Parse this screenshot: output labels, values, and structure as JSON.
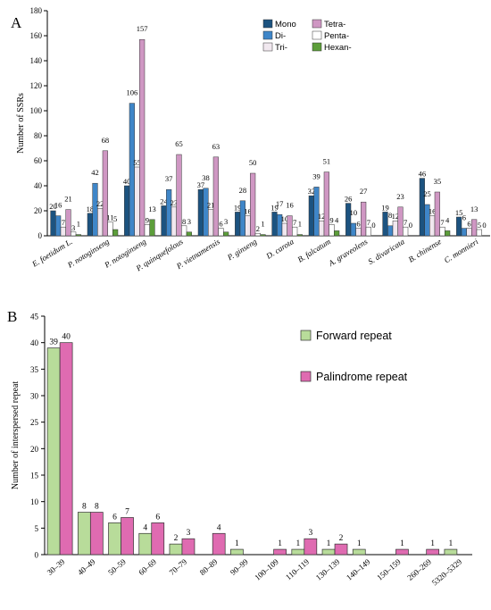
{
  "chart_data": [
    {
      "panel": "A",
      "type": "bar",
      "ylabel": "Number of SSRs",
      "ylim": [
        0,
        180
      ],
      "yticks": [
        0,
        20,
        40,
        60,
        80,
        100,
        120,
        140,
        160,
        180
      ],
      "grid": false,
      "legend_position": "top-right",
      "categories": [
        "E. foetidum L.",
        "P. notoginseng",
        "P. notoginseng",
        "P. quinquefolous",
        "P. vietnamensis",
        "P. ginseng",
        "D. carota",
        "B. falcatum",
        "A. graveolens",
        "S. divaricata",
        "B. chinense",
        "C. monnieri"
      ],
      "series": [
        {
          "name": "Mono",
          "color": "#1c5380",
          "values": [
            20,
            18,
            40,
            24,
            37,
            19,
            19,
            32,
            26,
            19,
            46,
            15
          ]
        },
        {
          "name": "Di-",
          "color": "#3f86c8",
          "values": [
            16,
            42,
            106,
            37,
            38,
            28,
            17,
            39,
            10,
            8,
            25,
            6
          ]
        },
        {
          "name": "Tri-",
          "color": "#f1e8ef",
          "values": [
            7,
            22,
            55,
            23,
            21,
            16,
            10,
            12,
            6,
            12,
            16,
            6
          ]
        },
        {
          "name": "Tetra-",
          "color": "#cf97c3",
          "values": [
            21,
            68,
            157,
            65,
            63,
            50,
            16,
            51,
            27,
            23,
            35,
            13
          ]
        },
        {
          "name": "Penta-",
          "color": "#ffffff",
          "values": [
            3,
            11,
            9,
            8,
            6,
            2,
            7,
            9,
            7,
            7,
            7,
            5
          ]
        },
        {
          "name": "Hexan-",
          "color": "#5c9e3a",
          "values": [
            1,
            5,
            13,
            3,
            3,
            1,
            1,
            4,
            0,
            0,
            4,
            0
          ]
        }
      ]
    },
    {
      "panel": "B",
      "type": "bar",
      "ylabel": "Number of interspersed repeat",
      "ylim": [
        0,
        45
      ],
      "yticks": [
        0,
        5,
        10,
        15,
        20,
        25,
        30,
        35,
        40,
        45
      ],
      "grid": false,
      "legend_position": "top-right",
      "categories": [
        "30–39",
        "40–49",
        "50–59",
        "60–69",
        "70–79",
        "80–89",
        "90–99",
        "100–109",
        "110–119",
        "130–139",
        "140–149",
        "150–159",
        "260–269",
        "5320–5329"
      ],
      "series": [
        {
          "name": "Forward repeat",
          "color": "#b8dc9a",
          "values": [
            39,
            8,
            6,
            4,
            2,
            0,
            1,
            0,
            1,
            1,
            1,
            0,
            0,
            1
          ]
        },
        {
          "name": "Palindrome repeat",
          "color": "#df6bb1",
          "values": [
            40,
            8,
            7,
            6,
            3,
            4,
            0,
            1,
            3,
            2,
            0,
            1,
            1,
            0
          ]
        }
      ]
    }
  ]
}
